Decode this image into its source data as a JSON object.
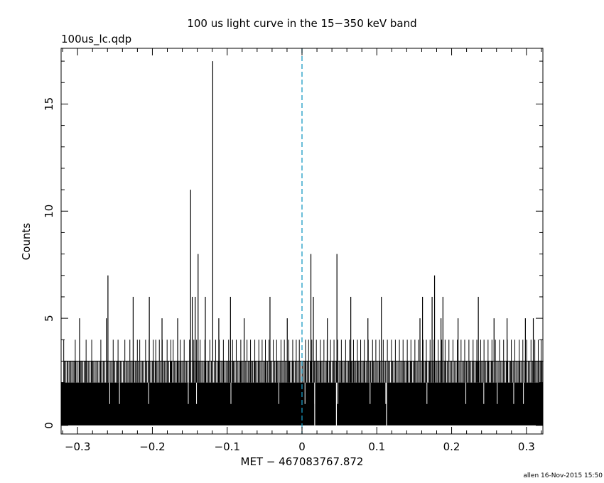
{
  "chart_data": {
    "type": "bar",
    "title": "100 us light curve in the 15−350 keV band",
    "subtitle": "100us_lc.qdp",
    "xlabel": "MET − 467083767.872",
    "ylabel": "Counts",
    "footer": "allen 16-Nov-2015 15:50",
    "xlim": [
      -0.322,
      0.322
    ],
    "ylim": [
      -0.4,
      17.6
    ],
    "bin_width": 0.0001,
    "baseline": 0,
    "trigger_line": {
      "x": 0,
      "color": "#1a9ac4",
      "style": "dashed"
    },
    "x_ticks": [
      {
        "v": -0.3,
        "label": "−0.3"
      },
      {
        "v": -0.2,
        "label": "−0.2"
      },
      {
        "v": -0.1,
        "label": "−0.1"
      },
      {
        "v": 0,
        "label": "0"
      },
      {
        "v": 0.1,
        "label": "0.1"
      },
      {
        "v": 0.2,
        "label": "0.2"
      },
      {
        "v": 0.3,
        "label": "0.3"
      }
    ],
    "y_ticks": [
      {
        "v": 0,
        "label": "0"
      },
      {
        "v": 5,
        "label": "5"
      },
      {
        "v": 10,
        "label": "10"
      },
      {
        "v": 15,
        "label": "15"
      }
    ],
    "x_minor_step": 0.02,
    "y_minor_step": 1,
    "fill_level": 2,
    "fill_gaps": [
      -0.257,
      -0.244,
      -0.205,
      -0.152,
      -0.141,
      -0.095,
      -0.031,
      0.004,
      0.017,
      0.048,
      0.091,
      0.112,
      0.167,
      0.219,
      0.243,
      0.261,
      0.283,
      0.296
    ],
    "baseline_gaps": [
      0.017,
      0.046,
      0.113
    ],
    "three_count_bins": [
      -0.3175,
      -0.3163,
      -0.3141,
      -0.3128,
      -0.3112,
      -0.3092,
      -0.3077,
      -0.3058,
      -0.3041,
      -0.3022,
      -0.3004,
      -0.2981,
      -0.2962,
      -0.2947,
      -0.2929,
      -0.2911,
      -0.2894,
      -0.2876,
      -0.2857,
      -0.2836,
      -0.2818,
      -0.2799,
      -0.2784,
      -0.2764,
      -0.2746,
      -0.2729,
      -0.2711,
      -0.2693,
      -0.2672,
      -0.2654,
      -0.2637,
      -0.2618,
      -0.2599,
      -0.2578,
      -0.2556,
      -0.2538,
      -0.2519,
      -0.2502,
      -0.2484,
      -0.2466,
      -0.2447,
      -0.2428,
      -0.2409,
      -0.2388,
      -0.2371,
      -0.2352,
      -0.2336,
      -0.2318,
      -0.2297,
      -0.2279,
      -0.2262,
      -0.2244,
      -0.2226,
      -0.2208,
      -0.2188,
      -0.2167,
      -0.2148,
      -0.2131,
      -0.2113,
      -0.2094,
      -0.2076,
      -0.2058,
      -0.2039,
      -0.2021,
      -0.2001,
      -0.1983,
      -0.1964,
      -0.1946,
      -0.1928,
      -0.1909,
      -0.1891,
      -0.1872,
      -0.1853,
      -0.1836,
      -0.1818,
      -0.1799,
      -0.1781,
      -0.1762,
      -0.1743,
      -0.1726,
      -0.1707,
      -0.1689,
      -0.1671,
      -0.1652,
      -0.1634,
      -0.1615,
      -0.1597,
      -0.1579,
      -0.1561,
      -0.1542,
      -0.1524,
      -0.1505,
      -0.1486,
      -0.1468,
      -0.1451,
      -0.1432,
      -0.1413,
      -0.1394,
      -0.1376,
      -0.1358,
      -0.1339,
      -0.1321,
      -0.1303,
      -0.1284,
      -0.1266,
      -0.1248,
      -0.1229,
      -0.1211,
      -0.1192,
      -0.1174,
      -0.1156,
      -0.1137,
      -0.1119,
      -0.1101,
      -0.1082,
      -0.1064,
      -0.1046,
      -0.1027,
      -0.1009,
      -0.0991,
      -0.0972,
      -0.0954,
      -0.0936,
      -0.0917,
      -0.0899,
      -0.0881,
      -0.0862,
      -0.0844,
      -0.0826,
      -0.0807,
      -0.0789,
      -0.0771,
      -0.0752,
      -0.0734,
      -0.0716,
      -0.0697,
      -0.0679,
      -0.0661,
      -0.0642,
      -0.0624,
      -0.0606,
      -0.0587,
      -0.0569,
      -0.0551,
      -0.0532,
      -0.0514,
      -0.0496,
      -0.0477,
      -0.0459,
      -0.0441,
      -0.0422,
      -0.0404,
      -0.0386,
      -0.0367,
      -0.0349,
      -0.0331,
      -0.0312,
      -0.0294,
      -0.0276,
      -0.0257,
      -0.0239,
      -0.0221,
      -0.0202,
      -0.0184,
      -0.0166,
      -0.0147,
      -0.0129,
      -0.0111,
      -0.0092,
      -0.0074,
      -0.0056,
      -0.0037,
      -0.0019,
      0.0002,
      0.0018,
      0.0037,
      0.0055,
      0.0073,
      0.0092,
      0.011,
      0.0128,
      0.0147,
      0.0165,
      0.0183,
      0.0202,
      0.022,
      0.0238,
      0.0257,
      0.0275,
      0.0293,
      0.0312,
      0.033,
      0.0348,
      0.0367,
      0.0385,
      0.0403,
      0.0422,
      0.044,
      0.0458,
      0.0477,
      0.0495,
      0.0513,
      0.0532,
      0.055,
      0.0568,
      0.0587,
      0.0605,
      0.0623,
      0.0642,
      0.066,
      0.0678,
      0.0697,
      0.0715,
      0.0733,
      0.0752,
      0.077,
      0.0788,
      0.0807,
      0.0825,
      0.0843,
      0.0862,
      0.088,
      0.0898,
      0.0917,
      0.0935,
      0.0953,
      0.0972,
      0.099,
      0.1008,
      0.1027,
      0.1045,
      0.1063,
      0.1082,
      0.11,
      0.1118,
      0.1137,
      0.1155,
      0.1173,
      0.1192,
      0.121,
      0.1228,
      0.1247,
      0.1265,
      0.1283,
      0.1302,
      0.132,
      0.1338,
      0.1357,
      0.1375,
      0.1393,
      0.1412,
      0.143,
      0.1448,
      0.1467,
      0.1485,
      0.1503,
      0.1522,
      0.154,
      0.1558,
      0.1577,
      0.1595,
      0.1613,
      0.1632,
      0.165,
      0.1668,
      0.1687,
      0.1705,
      0.1723,
      0.1742,
      0.176,
      0.1778,
      0.1797,
      0.1815,
      0.1833,
      0.1852,
      0.187,
      0.1888,
      0.1907,
      0.1925,
      0.1943,
      0.1962,
      0.198,
      0.1998,
      0.2017,
      0.2035,
      0.2053,
      0.2072,
      0.209,
      0.2108,
      0.2127,
      0.2145,
      0.2163,
      0.2182,
      0.22,
      0.2218,
      0.2237,
      0.2255,
      0.2273,
      0.2292,
      0.231,
      0.2328,
      0.2347,
      0.2365,
      0.2383,
      0.2402,
      0.242,
      0.2438,
      0.2457,
      0.2475,
      0.2493,
      0.2512,
      0.253,
      0.2548,
      0.2567,
      0.2585,
      0.2603,
      0.2622,
      0.264,
      0.2658,
      0.2677,
      0.2695,
      0.2713,
      0.2732,
      0.275,
      0.2768,
      0.2787,
      0.2805,
      0.2823,
      0.2842,
      0.286,
      0.2878,
      0.2897,
      0.2915,
      0.2933,
      0.2952,
      0.297,
      0.2988,
      0.3007,
      0.3025,
      0.3043,
      0.3062,
      0.308,
      0.3098,
      0.3117,
      0.3135,
      0.3153,
      0.3172,
      0.319,
      0.3208
    ],
    "four_count_bins": [
      -0.3185,
      -0.3031,
      -0.2886,
      -0.2811,
      -0.2689,
      -0.2524,
      -0.2459,
      -0.2368,
      -0.2301,
      -0.2255,
      -0.2201,
      -0.2169,
      -0.2091,
      -0.2044,
      -0.1989,
      -0.1955,
      -0.1907,
      -0.1868,
      -0.1803,
      -0.1753,
      -0.1722,
      -0.1662,
      -0.1627,
      -0.1575,
      -0.1504,
      -0.1446,
      -0.1409,
      -0.1362,
      -0.1298,
      -0.1232,
      -0.1155,
      -0.1106,
      -0.1051,
      -0.0981,
      -0.0928,
      -0.0879,
      -0.0818,
      -0.0775,
      -0.0735,
      -0.0688,
      -0.0631,
      -0.0577,
      -0.0533,
      -0.0489,
      -0.0441,
      -0.0384,
      -0.0339,
      -0.0281,
      -0.0236,
      -0.0176,
      -0.0124,
      -0.0077,
      -0.0036,
      0.0047,
      0.0088,
      0.0131,
      0.0192,
      0.0246,
      0.0293,
      0.0336,
      0.0381,
      0.0428,
      0.0477,
      0.0526,
      0.0583,
      0.0636,
      0.0688,
      0.0741,
      0.0784,
      0.0833,
      0.0886,
      0.0943,
      0.0987,
      0.1037,
      0.1086,
      0.1141,
      0.1196,
      0.1248,
      0.1302,
      0.1351,
      0.1407,
      0.1456,
      0.1509,
      0.1557,
      0.1618,
      0.1662,
      0.1712,
      0.1766,
      0.1821,
      0.1868,
      0.1913,
      0.1964,
      0.2018,
      0.2077,
      0.2126,
      0.2175,
      0.2231,
      0.2287,
      0.2337,
      0.2388,
      0.2433,
      0.2487,
      0.2539,
      0.2585,
      0.2641,
      0.2695,
      0.2744,
      0.2798,
      0.2845,
      0.2904,
      0.2952,
      0.3003,
      0.3061,
      0.3112,
      0.3158,
      0.3197
    ],
    "peaks": [
      {
        "x": -0.2973,
        "y": 5
      },
      {
        "x": -0.2615,
        "y": 5
      },
      {
        "x": -0.2594,
        "y": 7
      },
      {
        "x": -0.2257,
        "y": 6
      },
      {
        "x": -0.2041,
        "y": 6
      },
      {
        "x": -0.1871,
        "y": 5
      },
      {
        "x": -0.1662,
        "y": 5
      },
      {
        "x": -0.1489,
        "y": 11
      },
      {
        "x": -0.1467,
        "y": 6
      },
      {
        "x": -0.1428,
        "y": 6
      },
      {
        "x": -0.1389,
        "y": 8
      },
      {
        "x": -0.1292,
        "y": 6
      },
      {
        "x": -0.1193,
        "y": 17
      },
      {
        "x": -0.1112,
        "y": 5
      },
      {
        "x": -0.0956,
        "y": 6
      },
      {
        "x": -0.0773,
        "y": 5
      },
      {
        "x": -0.0428,
        "y": 6
      },
      {
        "x": -0.0197,
        "y": 5
      },
      {
        "x": 0.0119,
        "y": 8
      },
      {
        "x": 0.0152,
        "y": 6
      },
      {
        "x": 0.0339,
        "y": 5
      },
      {
        "x": 0.0467,
        "y": 8
      },
      {
        "x": 0.0652,
        "y": 6
      },
      {
        "x": 0.0881,
        "y": 5
      },
      {
        "x": 0.1061,
        "y": 6
      },
      {
        "x": 0.1577,
        "y": 5
      },
      {
        "x": 0.1611,
        "y": 6
      },
      {
        "x": 0.1739,
        "y": 6
      },
      {
        "x": 0.1772,
        "y": 7
      },
      {
        "x": 0.1858,
        "y": 5
      },
      {
        "x": 0.1884,
        "y": 6
      },
      {
        "x": 0.2086,
        "y": 5
      },
      {
        "x": 0.2357,
        "y": 6
      },
      {
        "x": 0.2567,
        "y": 5
      },
      {
        "x": 0.2741,
        "y": 5
      },
      {
        "x": 0.2986,
        "y": 5
      },
      {
        "x": 0.3092,
        "y": 5
      }
    ]
  }
}
